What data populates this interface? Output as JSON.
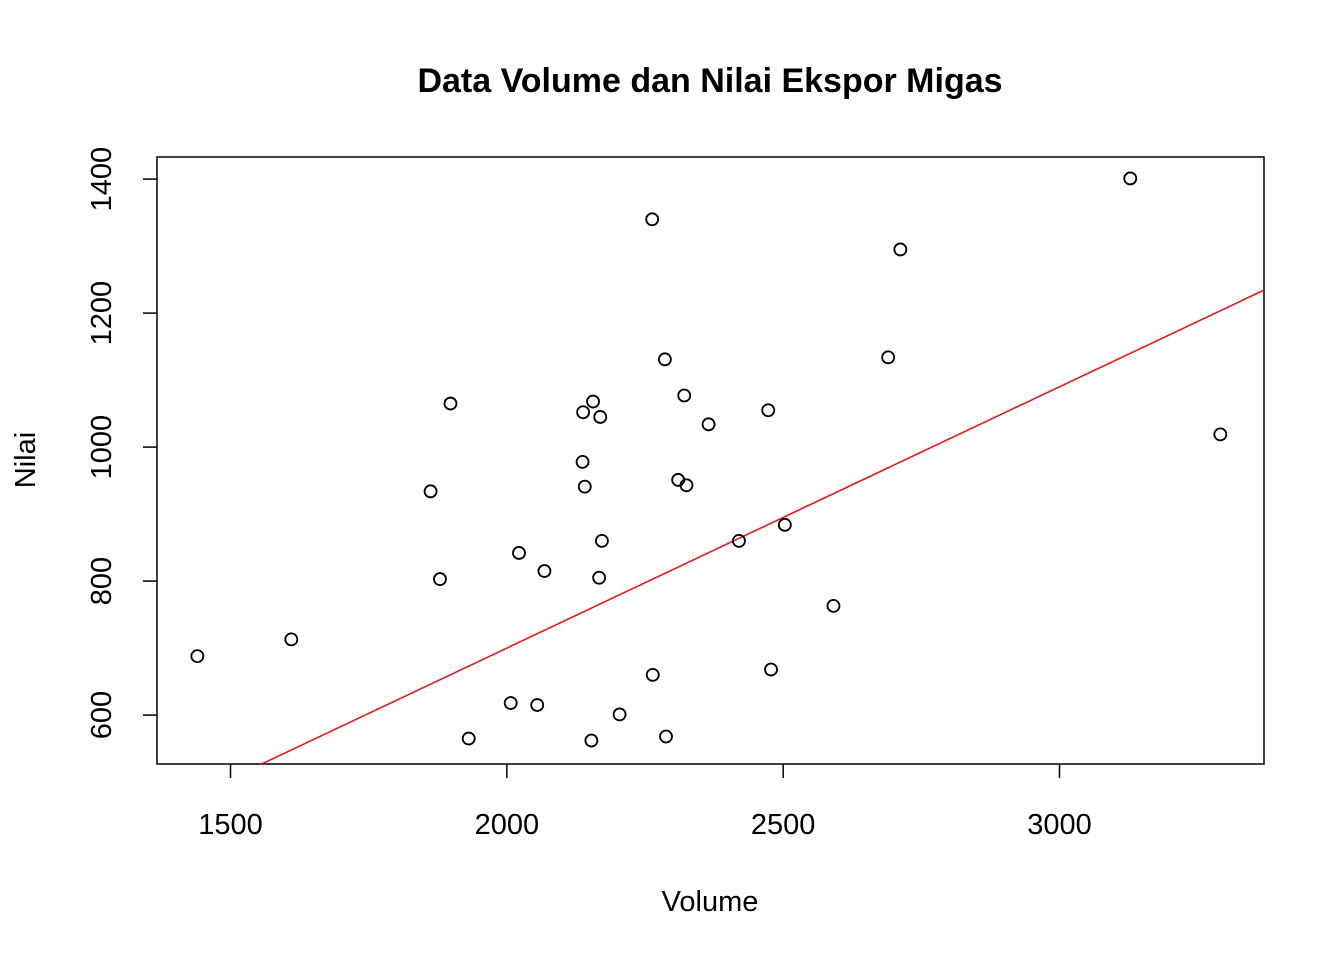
{
  "chart_data": {
    "type": "scatter",
    "title": "Data Volume dan Nilai Ekspor Migas",
    "xlabel": "Volume",
    "ylabel": "Nilai",
    "xlim": [
      1367,
      3370
    ],
    "ylim": [
      527,
      1433
    ],
    "xticks": [
      1500,
      2000,
      2500,
      3000
    ],
    "yticks": [
      600,
      800,
      1000,
      1200,
      1400
    ],
    "grid": false,
    "legend": "none",
    "point_color": "#000000",
    "fit_line": {
      "color": "#e31a1c",
      "intercept": -80,
      "slope": 0.39
    },
    "points": [
      {
        "x": 1440,
        "y": 688
      },
      {
        "x": 1610,
        "y": 713
      },
      {
        "x": 1862,
        "y": 934
      },
      {
        "x": 1879,
        "y": 803
      },
      {
        "x": 1898,
        "y": 1065
      },
      {
        "x": 1931,
        "y": 565
      },
      {
        "x": 2007,
        "y": 618
      },
      {
        "x": 2022,
        "y": 842
      },
      {
        "x": 2055,
        "y": 615
      },
      {
        "x": 2068,
        "y": 815
      },
      {
        "x": 2137,
        "y": 978
      },
      {
        "x": 2138,
        "y": 1052
      },
      {
        "x": 2141,
        "y": 941
      },
      {
        "x": 2153,
        "y": 562
      },
      {
        "x": 2156,
        "y": 1068
      },
      {
        "x": 2167,
        "y": 805
      },
      {
        "x": 2169,
        "y": 1045
      },
      {
        "x": 2172,
        "y": 860
      },
      {
        "x": 2204,
        "y": 601
      },
      {
        "x": 2263,
        "y": 1340
      },
      {
        "x": 2264,
        "y": 660
      },
      {
        "x": 2286,
        "y": 1131
      },
      {
        "x": 2288,
        "y": 568
      },
      {
        "x": 2310,
        "y": 951
      },
      {
        "x": 2321,
        "y": 1077
      },
      {
        "x": 2325,
        "y": 943
      },
      {
        "x": 2365,
        "y": 1034
      },
      {
        "x": 2420,
        "y": 860
      },
      {
        "x": 2473,
        "y": 1055
      },
      {
        "x": 2478,
        "y": 668
      },
      {
        "x": 2503,
        "y": 884
      },
      {
        "x": 2591,
        "y": 763
      },
      {
        "x": 2690,
        "y": 1134
      },
      {
        "x": 2712,
        "y": 1295
      },
      {
        "x": 3128,
        "y": 1401
      },
      {
        "x": 3291,
        "y": 1019
      }
    ]
  }
}
